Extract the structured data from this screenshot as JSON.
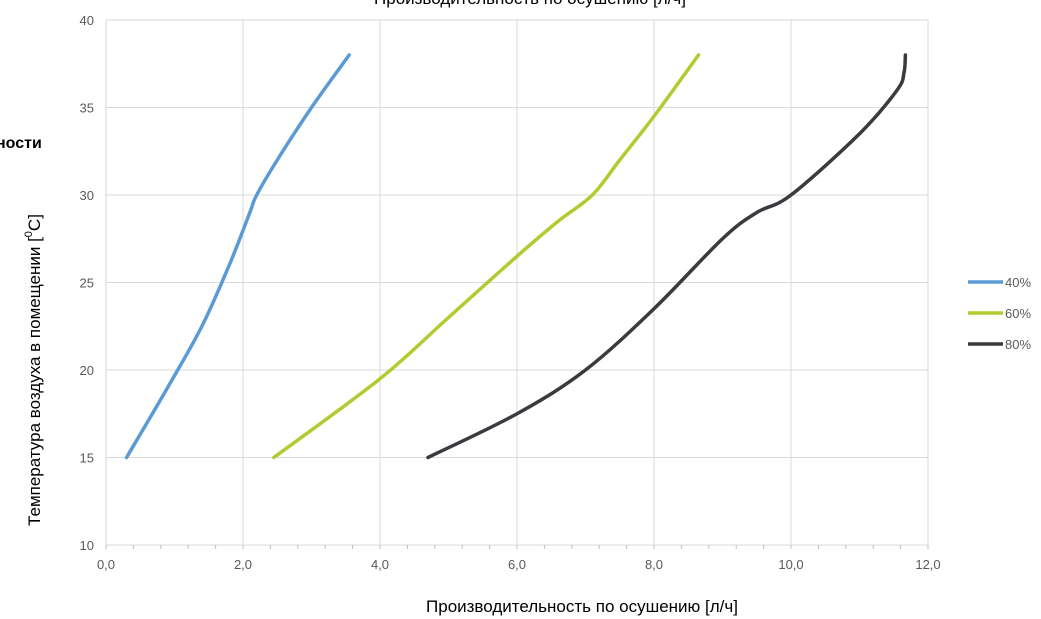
{
  "chart_data": {
    "type": "line",
    "title": "Производительность по осушению [л/ч]",
    "cropped_title_fragment": "ности",
    "xlabel": "Производительность по осушению [л/ч]",
    "ylabel": "Температура воздуха в помещении [°C]",
    "xlim": [
      0,
      12
    ],
    "ylim": [
      10,
      40
    ],
    "x_ticks": [
      "0,0",
      "2,0",
      "4,0",
      "6,0",
      "8,0",
      "10,0",
      "12,0"
    ],
    "y_ticks": [
      "10",
      "15",
      "20",
      "25",
      "30",
      "35",
      "40"
    ],
    "grid": true,
    "legend_position": "right",
    "series": [
      {
        "name": "40%",
        "color": "#5B9BD5",
        "x": [
          0.3,
          0.9,
          1.4,
          1.8,
          2.1,
          2.2,
          2.5,
          3.0,
          3.55
        ],
        "y": [
          15,
          19,
          22.5,
          26,
          29,
          30,
          32,
          35,
          38
        ]
      },
      {
        "name": "60%",
        "color": "#B5C930",
        "x": [
          2.45,
          4.0,
          5.0,
          6.0,
          6.6,
          7.1,
          7.5,
          8.0,
          8.65
        ],
        "y": [
          15,
          19.5,
          23,
          26.5,
          28.5,
          30,
          32,
          34.5,
          38
        ]
      },
      {
        "name": "80%",
        "color": "#3A3A3F",
        "x": [
          4.7,
          6.0,
          7.0,
          8.0,
          9.0,
          9.5,
          10.0,
          11.0,
          11.55,
          11.65,
          11.67
        ],
        "y": [
          15,
          17.5,
          20,
          23.5,
          27.5,
          29,
          30,
          33.5,
          36,
          37,
          38
        ]
      }
    ]
  }
}
